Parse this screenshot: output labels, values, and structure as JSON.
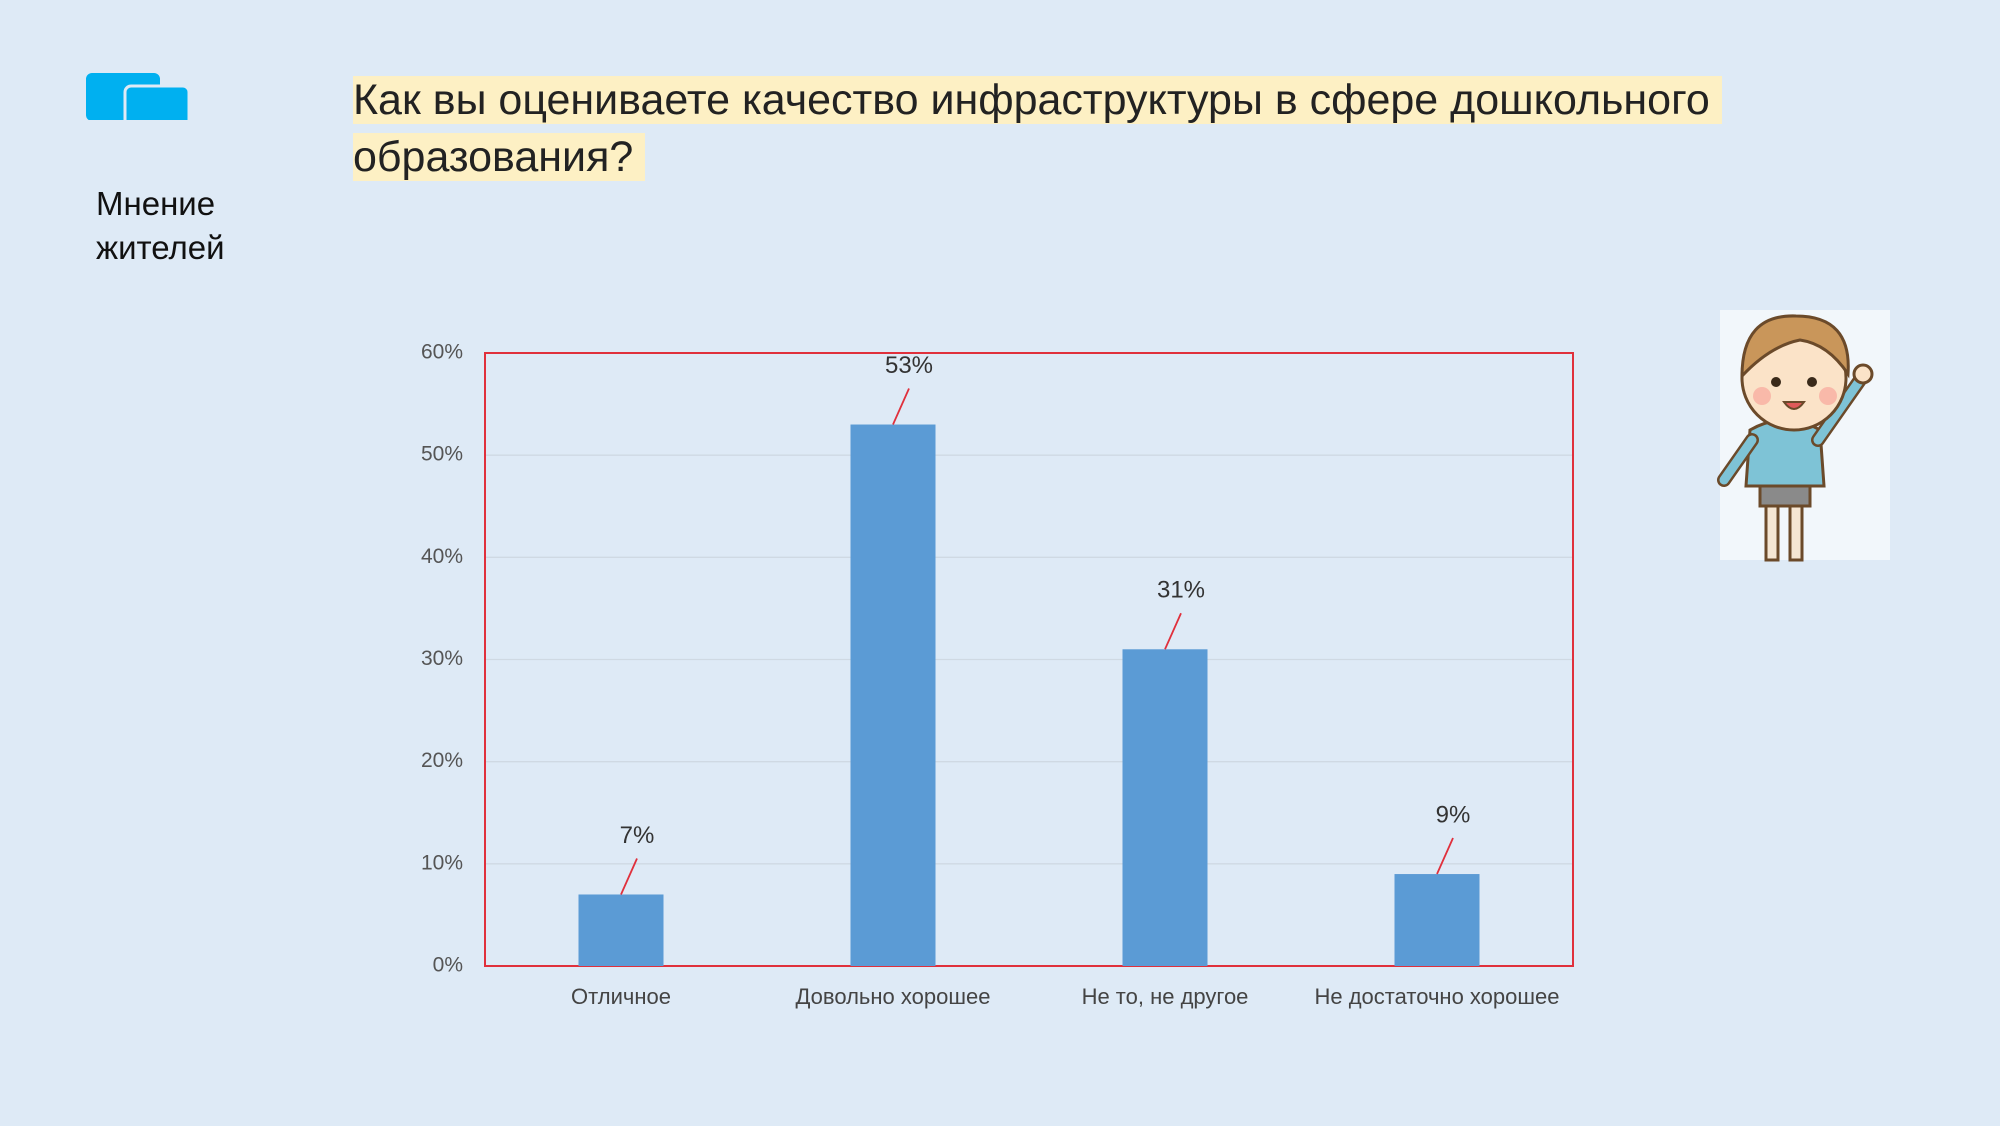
{
  "header": {
    "title": "Как вы оцениваете качество инфраструктуры в сфере дошкольного образования?",
    "label": "Мнение жителей"
  },
  "chart_data": {
    "type": "bar",
    "categories": [
      "Отличное",
      "Довольно хорошее",
      "Не то, не другое",
      "Не достаточно хорошее"
    ],
    "values": [
      7,
      53,
      31,
      9
    ],
    "value_labels": [
      "7%",
      "53%",
      "31%",
      "9%"
    ],
    "color": "#5b9bd5",
    "ylim": [
      0,
      60
    ],
    "yticks": [
      {
        "value": 0,
        "label": "0%"
      },
      {
        "value": 10,
        "label": "10%"
      },
      {
        "value": 20,
        "label": "20%"
      },
      {
        "value": 30,
        "label": "30%"
      },
      {
        "value": 40,
        "label": "40%"
      },
      {
        "value": 50,
        "label": "50%"
      },
      {
        "value": 60,
        "label": "60%"
      }
    ],
    "grid": true
  }
}
